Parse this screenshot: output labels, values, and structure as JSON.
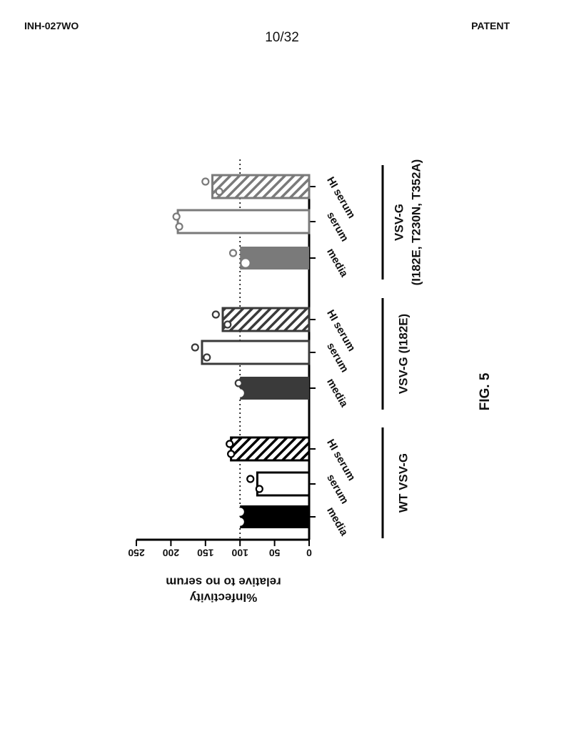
{
  "header": {
    "doc_id": "INH-027WO",
    "page": "10/32",
    "label": "PATENT"
  },
  "figure_label": "FIG. 5",
  "chart_data": {
    "type": "bar",
    "orientation": "rotated-90-clockwise",
    "ylabel_lines": [
      "%Infectivity",
      "relative to no serum"
    ],
    "ylim": [
      0,
      250
    ],
    "yticks": [
      0,
      50,
      100,
      150,
      200,
      250
    ],
    "reference_line": 100,
    "groups": [
      {
        "name": "WT VSV-G",
        "name_lines": [
          "WT VSV-G"
        ],
        "color": "#000000",
        "bars": [
          {
            "category": "media",
            "value": 100,
            "fill": "solid",
            "points": [
              100,
              100
            ]
          },
          {
            "category": "serum",
            "value": 75,
            "fill": "open",
            "points": [
              85,
              72
            ]
          },
          {
            "category": "HI serum",
            "value": 113,
            "fill": "hatched",
            "points": [
              115,
              113
            ]
          }
        ]
      },
      {
        "name": "VSV-G (I182E)",
        "name_lines": [
          "VSV-G (I182E)"
        ],
        "color": "#3a3a3a",
        "bars": [
          {
            "category": "media",
            "value": 100,
            "fill": "solid",
            "points": [
              102,
              100
            ]
          },
          {
            "category": "serum",
            "value": 155,
            "fill": "open",
            "points": [
              165,
              148
            ]
          },
          {
            "category": "HI serum",
            "value": 125,
            "fill": "hatched",
            "points": [
              135,
              118
            ]
          }
        ]
      },
      {
        "name": "VSV-G (I182E, T230N, T352A)",
        "name_lines": [
          "VSV-G",
          "(I182E, T230N, T352A)"
        ],
        "color": "#7a7a7a",
        "bars": [
          {
            "category": "media",
            "value": 100,
            "fill": "solid",
            "points": [
              110,
              92
            ]
          },
          {
            "category": "serum",
            "value": 190,
            "fill": "open",
            "points": [
              192,
              188
            ]
          },
          {
            "category": "HI serum",
            "value": 140,
            "fill": "hatched",
            "points": [
              150,
              130
            ]
          }
        ]
      }
    ]
  }
}
